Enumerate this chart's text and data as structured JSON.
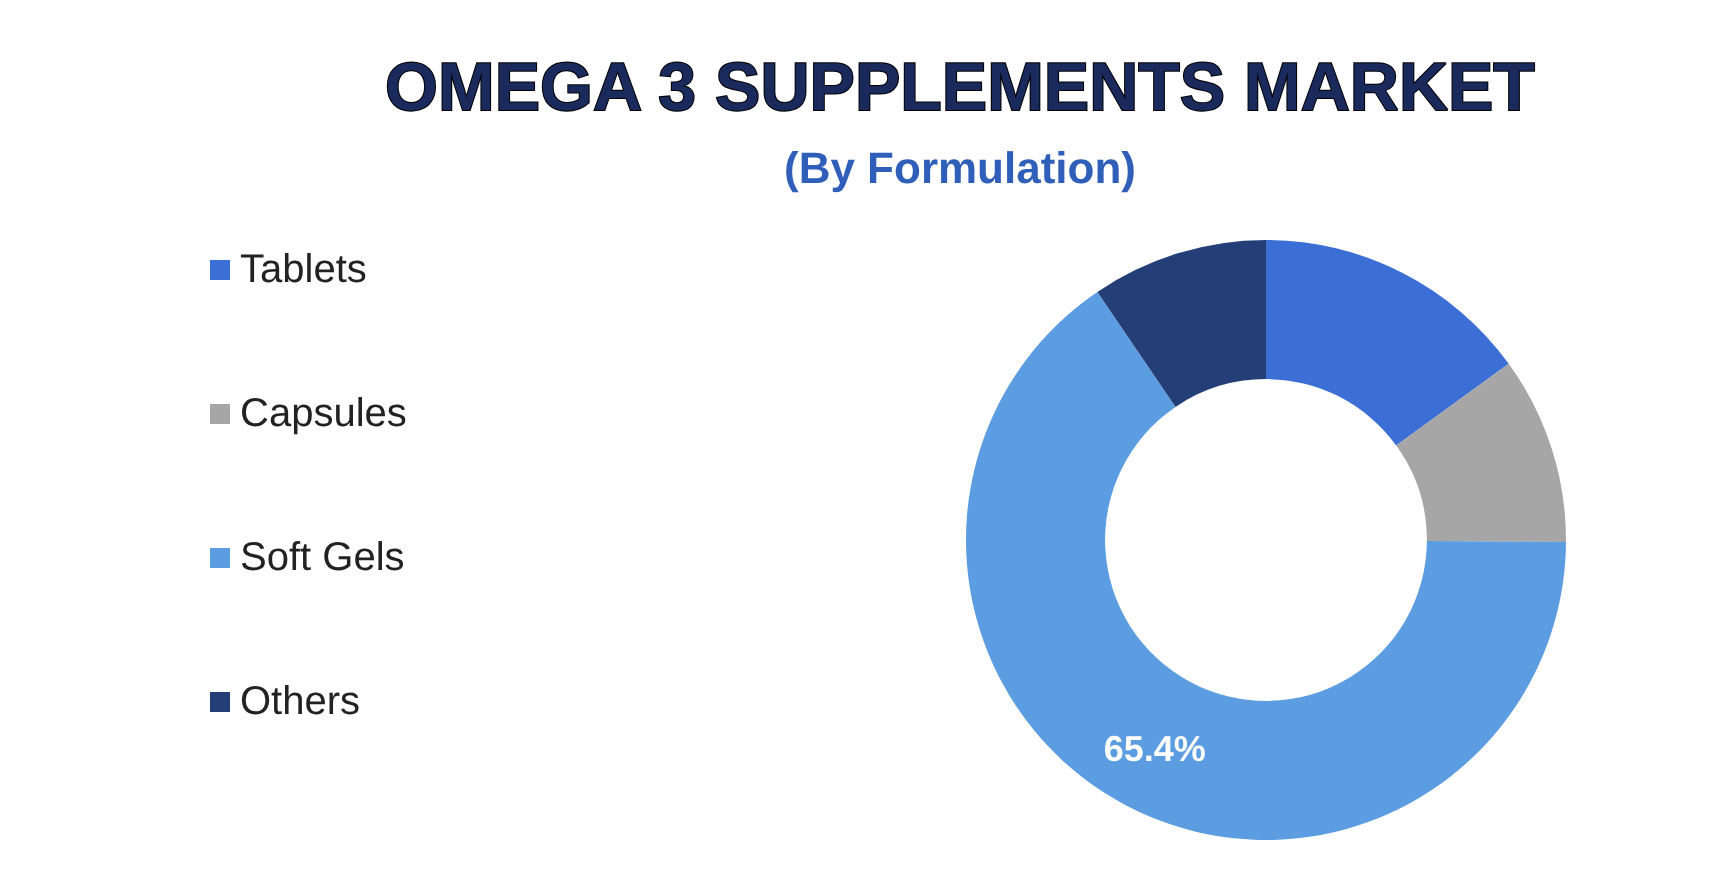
{
  "chart_data": {
    "type": "donut",
    "title": "OMEGA 3 SUPPLEMENTS MARKET",
    "subtitle": "(By Formulation)",
    "categories": [
      "Tablets",
      "Capsules",
      "Soft Gels",
      "Others"
    ],
    "values": [
      15,
      10.1,
      65.4,
      9.5
    ],
    "colors": [
      "#3b6fd6",
      "#a6a6a6",
      "#5b9de0",
      "#243f78"
    ],
    "value_labels": [
      null,
      null,
      "65.4%",
      null
    ],
    "legend": "left"
  }
}
